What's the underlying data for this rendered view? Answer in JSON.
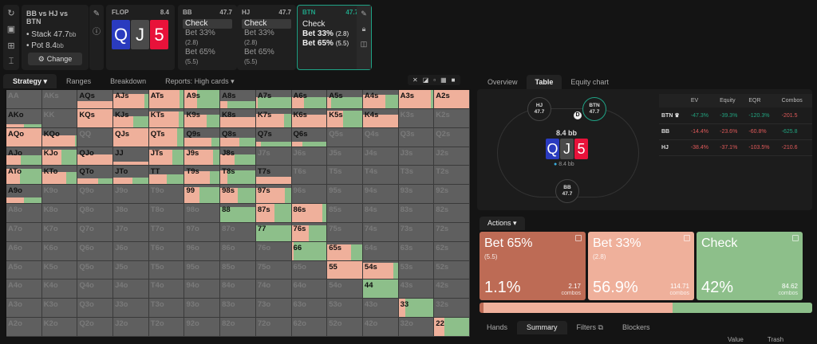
{
  "sidebar": {
    "icons": [
      "refresh-icon",
      "save-icon",
      "gamepad-icon",
      "text-cursor-icon"
    ]
  },
  "scenario": {
    "title": "BB vs HJ vs BTN",
    "stack_label": "Stack 47.7",
    "pot_label": "Pot 8.4",
    "unit": "bb",
    "change_label": "Change"
  },
  "flop": {
    "label": "FLOP",
    "pot": "8.4",
    "cards": [
      {
        "rank": "Q",
        "color": "#2a3bbf"
      },
      {
        "rank": "J",
        "color": "#4a4a4a"
      },
      {
        "rank": "5",
        "color": "#e8123a"
      }
    ]
  },
  "players": [
    {
      "name": "BB",
      "stack": "47.7",
      "actions": [
        {
          "label": "Check",
          "size": ""
        },
        {
          "label": "Bet 33%",
          "size": "(2.8)"
        },
        {
          "label": "Bet 65%",
          "size": "(5.5)"
        }
      ],
      "selected": 0
    },
    {
      "name": "HJ",
      "stack": "47.7",
      "actions": [
        {
          "label": "Check",
          "size": ""
        },
        {
          "label": "Bet 33%",
          "size": "(2.8)"
        },
        {
          "label": "Bet 65%",
          "size": "(5.5)"
        }
      ],
      "selected": 0
    },
    {
      "name": "BTN",
      "stack": "47.7",
      "actions": [
        {
          "label": "Check",
          "size": ""
        },
        {
          "label": "Bet 33%",
          "size": "(2.8)"
        },
        {
          "label": "Bet 65%",
          "size": "(5.5)"
        }
      ],
      "active": true
    }
  ],
  "left_tabs": [
    "Strategy",
    "Ranges",
    "Breakdown",
    "Reports: High cards"
  ],
  "grid_tools": [
    "✕",
    "◪",
    "▫",
    "▦",
    "■"
  ],
  "grid": [
    [
      [
        "AA",
        0,
        0,
        0
      ],
      [
        "AKs",
        0,
        0,
        0
      ],
      [
        "AQs",
        0.4,
        1,
        0
      ],
      [
        "AJs",
        0.8,
        0.88,
        0.12
      ],
      [
        "ATs",
        1,
        0.88,
        0.12
      ],
      [
        "A9s",
        1,
        0.35,
        0.65
      ],
      [
        "A8s",
        0.4,
        0.2,
        0.8
      ],
      [
        "A7s",
        0.6,
        0.05,
        0.95
      ],
      [
        "A6s",
        0.6,
        0.35,
        0.65
      ],
      [
        "A5s",
        0.6,
        0.1,
        0.9
      ],
      [
        "A4s",
        0.75,
        0.65,
        0.35
      ],
      [
        "A3s",
        1,
        0.92,
        0.08
      ],
      [
        "A2s",
        1,
        1,
        0
      ]
    ],
    [
      [
        "AKo",
        0.15,
        0.5,
        0.5
      ],
      [
        "KK",
        0,
        0,
        0
      ],
      [
        "KQs",
        1,
        1,
        0
      ],
      [
        "KJs",
        0.6,
        0.58,
        0.42
      ],
      [
        "KTs",
        0.85,
        0.85,
        0.15
      ],
      [
        "K9s",
        0.7,
        0.62,
        0.38
      ],
      [
        "K8s",
        0.55,
        1,
        0
      ],
      [
        "K7s",
        0.75,
        0.8,
        0.2
      ],
      [
        "K6s",
        0.7,
        1,
        0
      ],
      [
        "K5s",
        0.9,
        0.46,
        0.54
      ],
      [
        "K4s",
        0.7,
        1,
        0
      ],
      [
        "K3s",
        0,
        0,
        0
      ],
      [
        "K2s",
        0,
        0,
        0
      ]
    ],
    [
      [
        "AQo",
        1,
        1,
        0
      ],
      [
        "KQo",
        0.6,
        0.94,
        0.06
      ],
      [
        "QQ",
        0,
        0,
        0
      ],
      [
        "QJs",
        1,
        1,
        0
      ],
      [
        "QTs",
        1,
        0.8,
        0.2
      ],
      [
        "Q9s",
        0.45,
        0.76,
        0.24
      ],
      [
        "Q8s",
        0.45,
        0.55,
        0.45
      ],
      [
        "Q7s",
        0.25,
        0.15,
        0.85
      ],
      [
        "Q6s",
        0.25,
        0.3,
        0.7
      ],
      [
        "Q5s",
        0,
        0,
        0
      ],
      [
        "Q4s",
        0,
        0,
        0
      ],
      [
        "Q3s",
        0,
        0,
        0
      ],
      [
        "Q2s",
        0,
        0,
        0
      ]
    ],
    [
      [
        "AJo",
        0.55,
        0.42,
        0.58
      ],
      [
        "KJo",
        0.85,
        0.55,
        0.45
      ],
      [
        "QJo",
        0.6,
        1,
        0
      ],
      [
        "JJ",
        0.2,
        1,
        0
      ],
      [
        "JTs",
        0.85,
        0.66,
        0.34
      ],
      [
        "J9s",
        0.85,
        0.82,
        0.18
      ],
      [
        "J8s",
        0.6,
        0.4,
        0.6
      ],
      [
        "J7s",
        0,
        0,
        0
      ],
      [
        "J6s",
        0,
        0,
        0
      ],
      [
        "J5s",
        0,
        0,
        0
      ],
      [
        "J4s",
        0,
        0,
        0
      ],
      [
        "J3s",
        0,
        0,
        0
      ],
      [
        "J2s",
        0,
        0,
        0
      ]
    ],
    [
      [
        "ATo",
        0.85,
        0.38,
        0.62
      ],
      [
        "KTo",
        0.65,
        0.7,
        0.3
      ],
      [
        "QTo",
        0.3,
        0.58,
        0.42
      ],
      [
        "JTo",
        0.35,
        0.55,
        0.45
      ],
      [
        "TT",
        0.55,
        0.5,
        0.5
      ],
      [
        "T9s",
        0.7,
        0.72,
        0.28
      ],
      [
        "T8s",
        0.75,
        0.2,
        0.8
      ],
      [
        "T7s",
        0.4,
        1,
        0
      ],
      [
        "T6s",
        0,
        0,
        0
      ],
      [
        "T5s",
        0,
        0,
        0
      ],
      [
        "T4s",
        0,
        0,
        0
      ],
      [
        "T3s",
        0,
        0,
        0
      ],
      [
        "T2s",
        0,
        0,
        0
      ]
    ],
    [
      [
        "A9o",
        0.3,
        0.5,
        0.5
      ],
      [
        "K9o",
        0,
        0,
        0
      ],
      [
        "Q9o",
        0,
        0,
        0
      ],
      [
        "J9o",
        0,
        0,
        0
      ],
      [
        "T9o",
        0,
        0,
        0
      ],
      [
        "99",
        0.9,
        0.42,
        0.58
      ],
      [
        "98s",
        0.85,
        0.5,
        0.5
      ],
      [
        "97s",
        0.85,
        0.82,
        0.18
      ],
      [
        "96s",
        0,
        0,
        0
      ],
      [
        "95s",
        0,
        0,
        0
      ],
      [
        "94s",
        0,
        0,
        0
      ],
      [
        "93s",
        0,
        0,
        0
      ],
      [
        "92s",
        0,
        0,
        0
      ]
    ],
    [
      [
        "A8o",
        0,
        0,
        0
      ],
      [
        "K8o",
        0,
        0,
        0
      ],
      [
        "Q8o",
        0,
        0,
        0
      ],
      [
        "J8o",
        0,
        0,
        0
      ],
      [
        "T8o",
        0,
        0,
        0
      ],
      [
        "98o",
        0,
        0,
        0
      ],
      [
        "88",
        0.85,
        0,
        1
      ],
      [
        "87s",
        1,
        0.52,
        0.48
      ],
      [
        "86s",
        1,
        0.88,
        0.12
      ],
      [
        "85s",
        0,
        0,
        0
      ],
      [
        "84s",
        0,
        0,
        0
      ],
      [
        "83s",
        0,
        0,
        0
      ],
      [
        "82s",
        0,
        0,
        0
      ]
    ],
    [
      [
        "A7o",
        0,
        0,
        0
      ],
      [
        "K7o",
        0,
        0,
        0
      ],
      [
        "Q7o",
        0,
        0,
        0
      ],
      [
        "J7o",
        0,
        0,
        0
      ],
      [
        "T7o",
        0,
        0,
        0
      ],
      [
        "97o",
        0,
        0,
        0
      ],
      [
        "87o",
        0,
        0,
        0
      ],
      [
        "77",
        0.85,
        0,
        1
      ],
      [
        "76s",
        0.85,
        0.48,
        0.52
      ],
      [
        "75s",
        0,
        0,
        0
      ],
      [
        "74s",
        0,
        0,
        0
      ],
      [
        "73s",
        0,
        0,
        0
      ],
      [
        "72s",
        0,
        0,
        0
      ]
    ],
    [
      [
        "A6o",
        0,
        0,
        0
      ],
      [
        "K6o",
        0,
        0,
        0
      ],
      [
        "Q6o",
        0,
        0,
        0
      ],
      [
        "J6o",
        0,
        0,
        0
      ],
      [
        "T6o",
        0,
        0,
        0
      ],
      [
        "96o",
        0,
        0,
        0
      ],
      [
        "86o",
        0,
        0,
        0
      ],
      [
        "76o",
        0,
        0,
        0
      ],
      [
        "66",
        1,
        0.05,
        0.95
      ],
      [
        "65s",
        0.85,
        0.68,
        0.32
      ],
      [
        "64s",
        0,
        0,
        0
      ],
      [
        "63s",
        0,
        0,
        0
      ],
      [
        "62s",
        0,
        0,
        0
      ]
    ],
    [
      [
        "A5o",
        0,
        0,
        0
      ],
      [
        "K5o",
        0,
        0,
        0
      ],
      [
        "Q5o",
        0,
        0,
        0
      ],
      [
        "J5o",
        0,
        0,
        0
      ],
      [
        "T5o",
        0,
        0,
        0
      ],
      [
        "95o",
        0,
        0,
        0
      ],
      [
        "85o",
        0,
        0,
        0
      ],
      [
        "75o",
        0,
        0,
        0
      ],
      [
        "65o",
        0,
        0,
        0
      ],
      [
        "55",
        1,
        1,
        0
      ],
      [
        "54s",
        0.9,
        0.88,
        0.12
      ],
      [
        "53s",
        0,
        0,
        0
      ],
      [
        "52s",
        0,
        0,
        0
      ]
    ],
    [
      [
        "A4o",
        0,
        0,
        0
      ],
      [
        "K4o",
        0,
        0,
        0
      ],
      [
        "Q4o",
        0,
        0,
        0
      ],
      [
        "J4o",
        0,
        0,
        0
      ],
      [
        "T4o",
        0,
        0,
        0
      ],
      [
        "94o",
        0,
        0,
        0
      ],
      [
        "84o",
        0,
        0,
        0
      ],
      [
        "74o",
        0,
        0,
        0
      ],
      [
        "64o",
        0,
        0,
        0
      ],
      [
        "54o",
        0,
        0,
        0
      ],
      [
        "44",
        1,
        0,
        1
      ],
      [
        "43s",
        0,
        0,
        0
      ],
      [
        "42s",
        0,
        0,
        0
      ]
    ],
    [
      [
        "A3o",
        0,
        0,
        0
      ],
      [
        "K3o",
        0,
        0,
        0
      ],
      [
        "Q3o",
        0,
        0,
        0
      ],
      [
        "J3o",
        0,
        0,
        0
      ],
      [
        "T3o",
        0,
        0,
        0
      ],
      [
        "93o",
        0,
        0,
        0
      ],
      [
        "83o",
        0,
        0,
        0
      ],
      [
        "73o",
        0,
        0,
        0
      ],
      [
        "63o",
        0,
        0,
        0
      ],
      [
        "53o",
        0,
        0,
        0
      ],
      [
        "43o",
        0,
        0,
        0
      ],
      [
        "33",
        1,
        0.2,
        0.8
      ],
      [
        "32s",
        0,
        0,
        0
      ]
    ],
    [
      [
        "A2o",
        0,
        0,
        0
      ],
      [
        "K2o",
        0,
        0,
        0
      ],
      [
        "Q2o",
        0,
        0,
        0
      ],
      [
        "J2o",
        0,
        0,
        0
      ],
      [
        "T2o",
        0,
        0,
        0
      ],
      [
        "92o",
        0,
        0,
        0
      ],
      [
        "82o",
        0,
        0,
        0
      ],
      [
        "72o",
        0,
        0,
        0
      ],
      [
        "62o",
        0,
        0,
        0
      ],
      [
        "52o",
        0,
        0,
        0
      ],
      [
        "42o",
        0,
        0,
        0
      ],
      [
        "32o",
        0,
        0,
        0
      ],
      [
        "22",
        1,
        0.3,
        0.7
      ]
    ]
  ],
  "right_tabs": [
    "Overview",
    "Table",
    "Equity chart"
  ],
  "table_view": {
    "seats": [
      {
        "name": "HJ",
        "stack": "47.7"
      },
      {
        "name": "BTN",
        "stack": "47.7"
      },
      {
        "name": "BB",
        "stack": "47.7"
      }
    ],
    "dealer": "D",
    "pot": "8.4 bb",
    "chips": "8.4 bb"
  },
  "stats": {
    "headers": [
      "",
      "EV",
      "Equity",
      "EQR",
      "Combos"
    ],
    "rows": [
      {
        "name": "BTN ♛",
        "ev": "-47.3%",
        "equity": "-39.3%",
        "eqr": "-120.3%",
        "combos": "-201.5",
        "colors": [
          "green",
          "green",
          "green",
          "red"
        ]
      },
      {
        "name": "BB",
        "ev": "-14.4%",
        "equity": "-23.6%",
        "eqr": "-60.8%",
        "combos": "-625.8",
        "colors": [
          "red",
          "red",
          "red",
          "green"
        ]
      },
      {
        "name": "HJ",
        "ev": "-38.4%",
        "equity": "-37.1%",
        "eqr": "-103.5%",
        "combos": "-210.6",
        "colors": [
          "red",
          "red",
          "red",
          "red"
        ]
      }
    ]
  },
  "actions_tab": "Actions",
  "actions": [
    {
      "name": "Bet 65%",
      "size": "(5.5)",
      "pct": "1.1%",
      "combos": "2.17",
      "combos_label": "combos",
      "color": "#bd6b55"
    },
    {
      "name": "Bet 33%",
      "size": "(2.8)",
      "pct": "56.9%",
      "combos": "114.71",
      "combos_label": "combos",
      "color": "#efb09b"
    },
    {
      "name": "Check",
      "size": "",
      "pct": "42%",
      "combos": "84.62",
      "combos_label": "combos",
      "color": "#8dbf8a"
    }
  ],
  "freq_bar": [
    {
      "pct": 1.1,
      "color": "#bd6b55"
    },
    {
      "pct": 56.9,
      "color": "#efb09b"
    },
    {
      "pct": 42,
      "color": "#8dbf8a"
    }
  ],
  "bottom_tabs": [
    "Hands",
    "Summary",
    "Filters",
    "Blockers"
  ],
  "summary_cols": [
    "Value",
    "Trash"
  ]
}
